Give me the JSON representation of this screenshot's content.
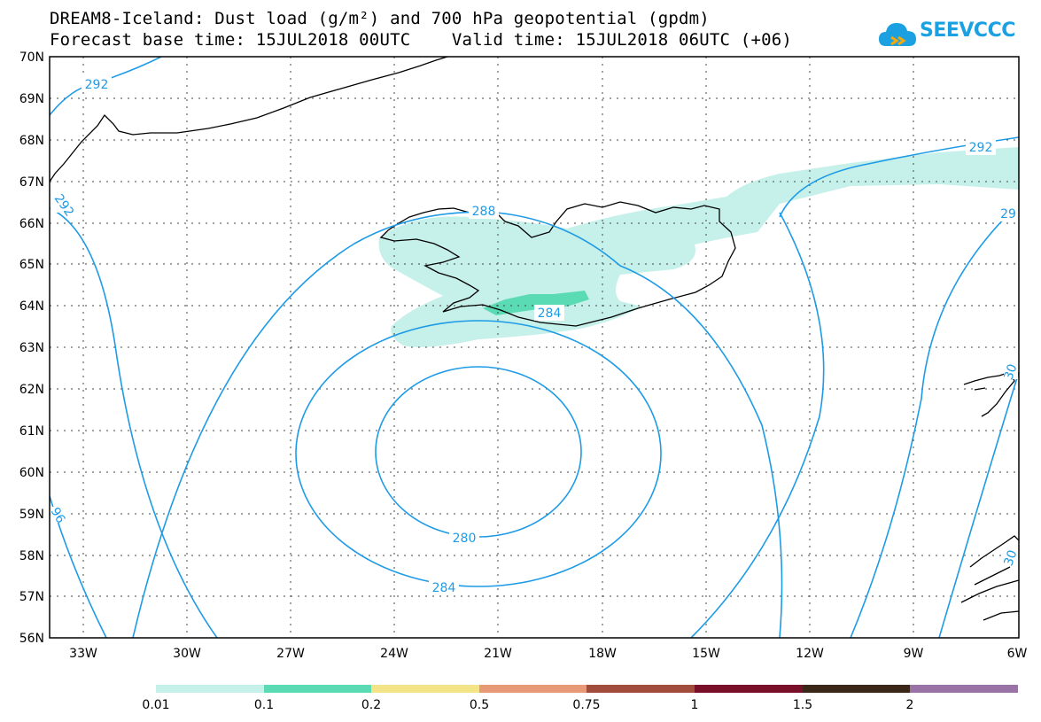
{
  "title_line1": "DREAM8-Iceland: Dust load (g/m²) and 700 hPa geopotential (gpdm)",
  "title_line2": "Forecast base time: 15JUL2018 00UTC    Valid time: 15JUL2018 06UTC (+06)",
  "logo": {
    "text": "SEEVCCC",
    "icon": "cloud-logo-icon"
  },
  "lat_labels": [
    "70N",
    "69N",
    "68N",
    "67N",
    "66N",
    "65N",
    "64N",
    "63N",
    "62N",
    "61N",
    "60N",
    "59N",
    "58N",
    "57N",
    "56N"
  ],
  "lon_labels": [
    "33W",
    "30W",
    "27W",
    "24W",
    "21W",
    "18W",
    "15W",
    "12W",
    "9W",
    "6W"
  ],
  "contour_labels": [
    "292",
    "292",
    "292",
    "288",
    "284",
    "280",
    "284",
    "29",
    "96",
    "30",
    "30"
  ],
  "colorbar": {
    "labels": [
      "0.01",
      "0.1",
      "0.2",
      "0.5",
      "0.75",
      "1",
      "1.5",
      "2"
    ],
    "colors": [
      "#c6f0ea",
      "#5adbb4",
      "#f3e587",
      "#e79a75",
      "#a24c3c",
      "#7a0f2a",
      "#3b2717",
      "#9972a6"
    ]
  },
  "colors": {
    "contour": "#1e9be6",
    "dust_light": "#c6f0ea",
    "dust_mid": "#5adbb4",
    "coast": "#000000"
  }
}
